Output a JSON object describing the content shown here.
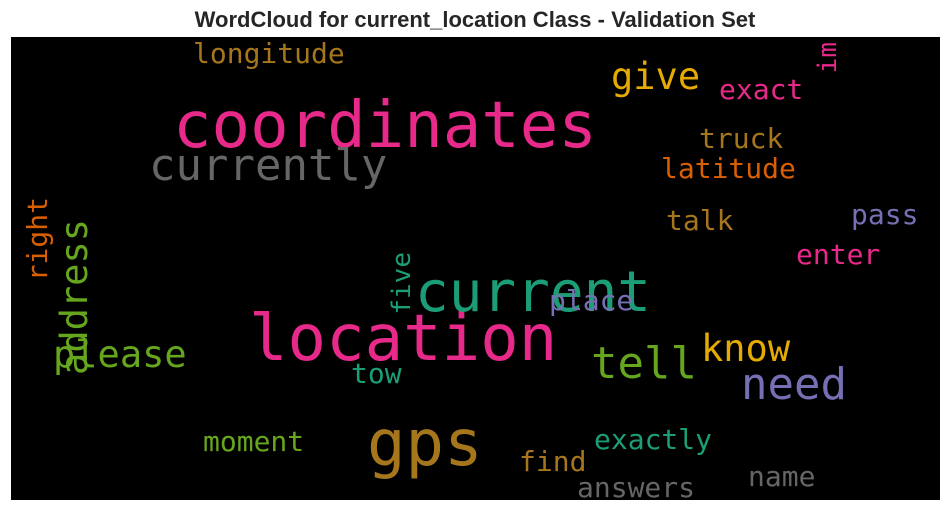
{
  "title": "WordCloud for current_location Class - Validation Set",
  "chart_data": {
    "type": "wordcloud",
    "title": "WordCloud for current_location Class - Validation Set",
    "background": "#000000",
    "colormap": "Dark2",
    "words": [
      {
        "text": "coordinates",
        "color": "#e7298a",
        "orientation": "horizontal"
      },
      {
        "text": "location",
        "color": "#e7298a",
        "orientation": "horizontal"
      },
      {
        "text": "current",
        "color": "#1b9e77",
        "orientation": "horizontal"
      },
      {
        "text": "gps",
        "color": "#a6761d",
        "orientation": "horizontal"
      },
      {
        "text": "currently",
        "color": "#666666",
        "orientation": "horizontal"
      },
      {
        "text": "need",
        "color": "#7570b3",
        "orientation": "horizontal"
      },
      {
        "text": "tell",
        "color": "#66a61e",
        "orientation": "horizontal"
      },
      {
        "text": "please",
        "color": "#66a61e",
        "orientation": "horizontal"
      },
      {
        "text": "know",
        "color": "#e6ab02",
        "orientation": "horizontal"
      },
      {
        "text": "give",
        "color": "#e6ab02",
        "orientation": "horizontal"
      },
      {
        "text": "address",
        "color": "#66a61e",
        "orientation": "vertical"
      },
      {
        "text": "longitude",
        "color": "#a6761d",
        "orientation": "horizontal"
      },
      {
        "text": "exact",
        "color": "#e7298a",
        "orientation": "horizontal"
      },
      {
        "text": "im",
        "color": "#e7298a",
        "orientation": "vertical"
      },
      {
        "text": "truck",
        "color": "#a6761d",
        "orientation": "horizontal"
      },
      {
        "text": "latitude",
        "color": "#d95f02",
        "orientation": "horizontal"
      },
      {
        "text": "right",
        "color": "#d95f02",
        "orientation": "vertical"
      },
      {
        "text": "talk",
        "color": "#a6761d",
        "orientation": "horizontal"
      },
      {
        "text": "pass",
        "color": "#7570b3",
        "orientation": "horizontal"
      },
      {
        "text": "five",
        "color": "#1b9e77",
        "orientation": "vertical"
      },
      {
        "text": "enter",
        "color": "#e7298a",
        "orientation": "horizontal"
      },
      {
        "text": "place",
        "color": "#7570b3",
        "orientation": "horizontal"
      },
      {
        "text": "tow",
        "color": "#1b9e77",
        "orientation": "horizontal"
      },
      {
        "text": "moment",
        "color": "#66a61e",
        "orientation": "horizontal"
      },
      {
        "text": "exactly",
        "color": "#1b9e77",
        "orientation": "horizontal"
      },
      {
        "text": "find",
        "color": "#a6761d",
        "orientation": "horizontal"
      },
      {
        "text": "name",
        "color": "#666666",
        "orientation": "horizontal"
      },
      {
        "text": "answers",
        "color": "#666666",
        "orientation": "horizontal"
      }
    ]
  }
}
